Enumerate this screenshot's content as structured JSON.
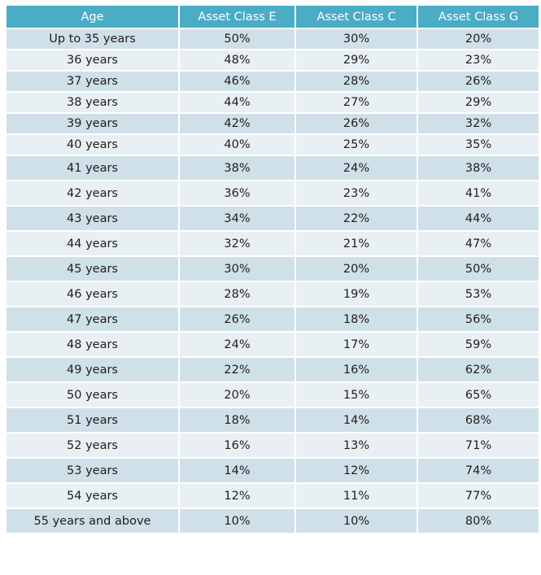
{
  "table": {
    "headers": [
      "Age",
      "Asset Class E",
      "Asset Class C",
      "Asset Class G"
    ],
    "rows": [
      [
        "Up to 35 years",
        "50%",
        "30%",
        "20%"
      ],
      [
        "36 years",
        "48%",
        "29%",
        "23%"
      ],
      [
        "37 years",
        "46%",
        "28%",
        "26%"
      ],
      [
        "38 years",
        "44%",
        "27%",
        "29%"
      ],
      [
        "39 years",
        "42%",
        "26%",
        "32%"
      ],
      [
        "40 years",
        "40%",
        "25%",
        "35%"
      ],
      [
        "41 years",
        "38%",
        "24%",
        "38%"
      ],
      [
        "42 years",
        "36%",
        "23%",
        "41%"
      ],
      [
        "43 years",
        "34%",
        "22%",
        "44%"
      ],
      [
        "44 years",
        "32%",
        "21%",
        "47%"
      ],
      [
        "45 years",
        "30%",
        "20%",
        "50%"
      ],
      [
        "46 years",
        "28%",
        "19%",
        "53%"
      ],
      [
        "47 years",
        "26%",
        "18%",
        "56%"
      ],
      [
        "48 years",
        "24%",
        "17%",
        "59%"
      ],
      [
        "49 years",
        "22%",
        "16%",
        "62%"
      ],
      [
        "50 years",
        "20%",
        "15%",
        "65%"
      ],
      [
        "51 years",
        "18%",
        "14%",
        "68%"
      ],
      [
        "52 years",
        "16%",
        "13%",
        "71%"
      ],
      [
        "53 years",
        "14%",
        "12%",
        "74%"
      ],
      [
        "54 years",
        "12%",
        "11%",
        "77%"
      ],
      [
        "55 years and above",
        "10%",
        "10%",
        "80%"
      ]
    ]
  },
  "colors": {
    "header_background": "#4bacc6",
    "row_band_dark": "#d0e0e8",
    "row_band_light": "#e9f0f4"
  }
}
